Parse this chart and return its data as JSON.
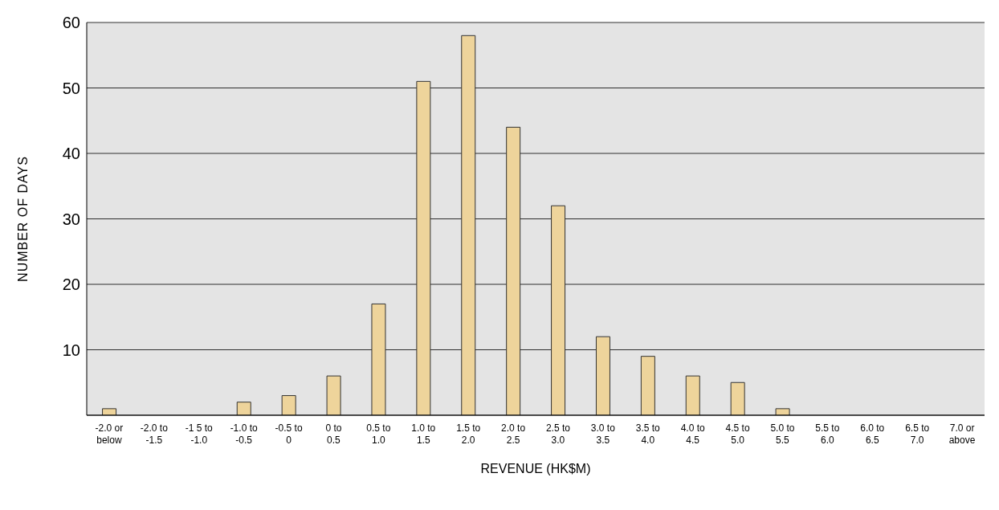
{
  "chart_data": {
    "type": "bar",
    "xlabel": "REVENUE (HK$M)",
    "ylabel": "NUMBER OF DAYS",
    "categories": [
      "-2.0 or\nbelow",
      "-2.0 to\n-1.5",
      "-1 5 to\n-1.0",
      "-1.0 to\n-0.5",
      "-0.5 to\n0",
      "0 to\n0.5",
      "0.5 to\n1.0",
      "1.0 to\n1.5",
      "1.5 to\n2.0",
      "2.0 to\n2.5",
      "2.5 to\n3.0",
      "3.0 to\n3.5",
      "3.5 to\n4.0",
      "4.0 to\n4.5",
      "4.5 to\n5.0",
      "5.0 to\n5.5",
      "5.5 to\n6.0",
      "6.0 to\n6.5",
      "6.5 to\n7.0",
      "7.0 or\nabove"
    ],
    "values": [
      1,
      0,
      0,
      2,
      3,
      6,
      17,
      51,
      58,
      44,
      32,
      12,
      9,
      6,
      5,
      1,
      0,
      0,
      0,
      0
    ],
    "color": "#eed49b",
    "ylim": [
      0,
      60
    ],
    "yticks": [
      10,
      20,
      30,
      40,
      50,
      60
    ],
    "grid": "y"
  }
}
